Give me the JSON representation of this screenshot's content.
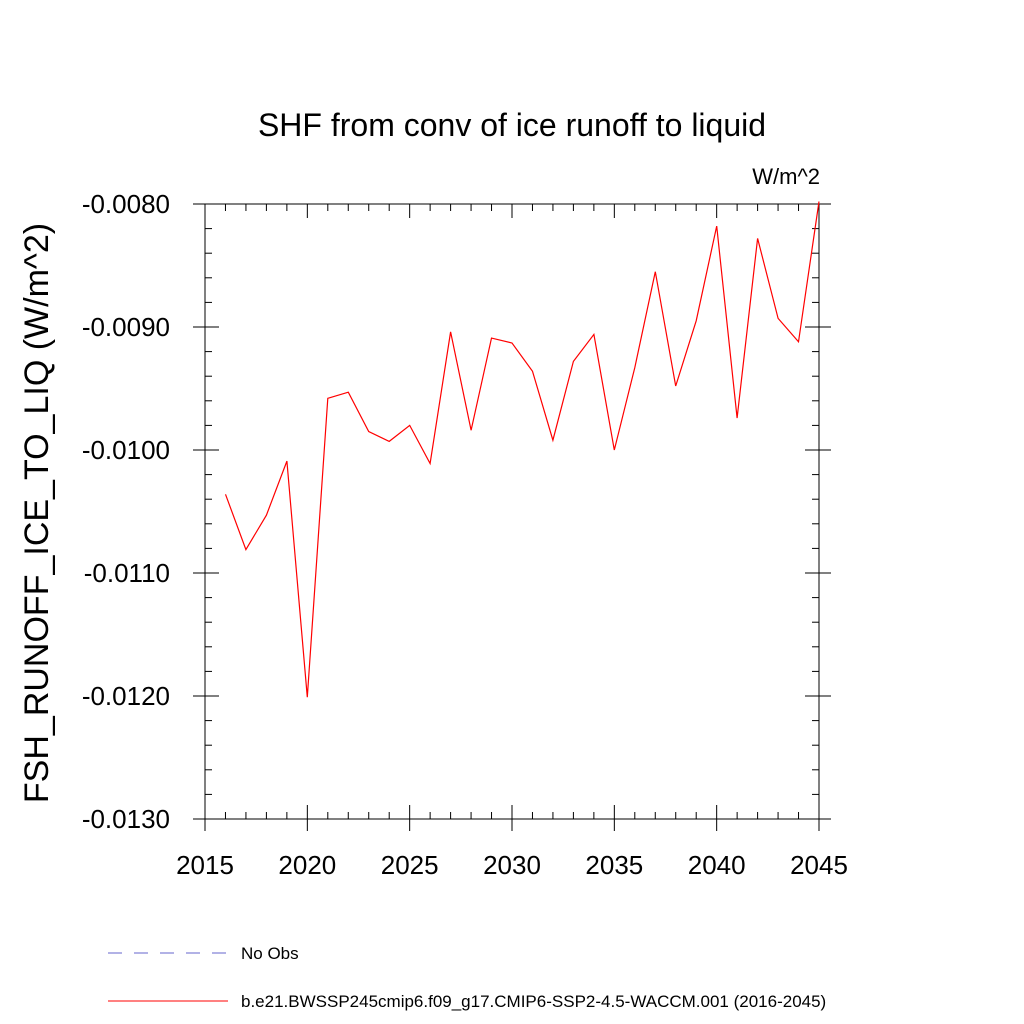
{
  "chart_data": {
    "type": "line",
    "title": "SHF from conv of ice runoff to liquid",
    "units": "W/m^2",
    "ylabel": "FSH_RUNOFF_ICE_TO_LIQ  (W/m^2)",
    "xlabel": "",
    "xlim": [
      2015,
      2045
    ],
    "ylim": [
      -0.013,
      -0.008
    ],
    "x_ticks": [
      2015,
      2020,
      2025,
      2030,
      2035,
      2040,
      2045
    ],
    "x_tick_labels": [
      "2015",
      "2020",
      "2025",
      "2030",
      "2035",
      "2040",
      "2045"
    ],
    "y_ticks": [
      -0.008,
      -0.009,
      -0.01,
      -0.011,
      -0.012,
      -0.013
    ],
    "y_tick_labels": [
      "-0.0080",
      "-0.0090",
      "-0.0100",
      "-0.0110",
      "-0.0120",
      "-0.0130"
    ],
    "series": [
      {
        "name": "b.e21.BWSSP245cmip6.f09_g17.CMIP6-SSP2-4.5-WACCM.001 (2016-2045)",
        "color": "#ff0000",
        "dash": "solid",
        "x": [
          2016,
          2017,
          2018,
          2019,
          2020,
          2021,
          2022,
          2023,
          2024,
          2025,
          2026,
          2027,
          2028,
          2029,
          2030,
          2031,
          2032,
          2033,
          2034,
          2035,
          2036,
          2037,
          2038,
          2039,
          2040,
          2041,
          2042,
          2043,
          2044,
          2045
        ],
        "y": [
          -0.01036,
          -0.01081,
          -0.01053,
          -0.01009,
          -0.01201,
          -0.00958,
          -0.00953,
          -0.00985,
          -0.00993,
          -0.0098,
          -0.01011,
          -0.00904,
          -0.00984,
          -0.00909,
          -0.00913,
          -0.00936,
          -0.00992,
          -0.00928,
          -0.00906,
          -0.01,
          -0.00933,
          -0.00855,
          -0.00948,
          -0.00895,
          -0.00818,
          -0.00974,
          -0.00828,
          -0.00893,
          -0.00912,
          -0.00798
        ]
      }
    ],
    "legend": [
      {
        "label": "No Obs",
        "color": "#6666cc",
        "dash": "dashed"
      },
      {
        "label": "b.e21.BWSSP245cmip6.f09_g17.CMIP6-SSP2-4.5-WACCM.001 (2016-2045)",
        "color": "#ff0000",
        "dash": "solid"
      }
    ],
    "legend_position": "bottom"
  }
}
